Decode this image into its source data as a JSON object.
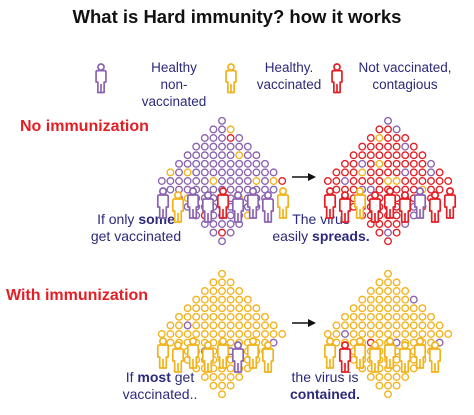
{
  "title": "What is Hard immunity? how it works",
  "colors": {
    "healthy_non_vaccinated": "#8a63b0",
    "healthy_vaccinated": "#f2b21b",
    "not_vaccinated_contagious": "#e31e24",
    "text_blue": "#2b2a7c",
    "heading_red": "#e31e24"
  },
  "legend": [
    {
      "lines": [
        "Healthy",
        "non-",
        "vaccinated"
      ],
      "icon": "person-icon",
      "color": "#8a63b0"
    },
    {
      "lines": [
        "Healthy.",
        "vaccinated"
      ],
      "icon": "person-icon",
      "color": "#f2b21b"
    },
    {
      "lines": [
        "Not vaccinated,",
        "contagious"
      ],
      "icon": "person-icon",
      "color": "#e31e24"
    }
  ],
  "scenarios": [
    {
      "heading": "No immunization",
      "left_caption": {
        "line1_pre": "If only ",
        "line1_bold": "some",
        "line2": "get vaccinated"
      },
      "right_caption": {
        "line1": "The virus",
        "line2_pre": "easily ",
        "line2_bold": "spreads."
      },
      "arrow_icon": "arrow-right-icon"
    },
    {
      "heading": "With immunization",
      "left_caption": {
        "line1_pre": "If ",
        "line1_bold": "most",
        "line1_post": " get",
        "line2": "vaccinated.."
      },
      "right_caption": {
        "line1": "the virus is",
        "line2_bold": "contained."
      },
      "arrow_icon": "arrow-right-icon"
    }
  ]
}
